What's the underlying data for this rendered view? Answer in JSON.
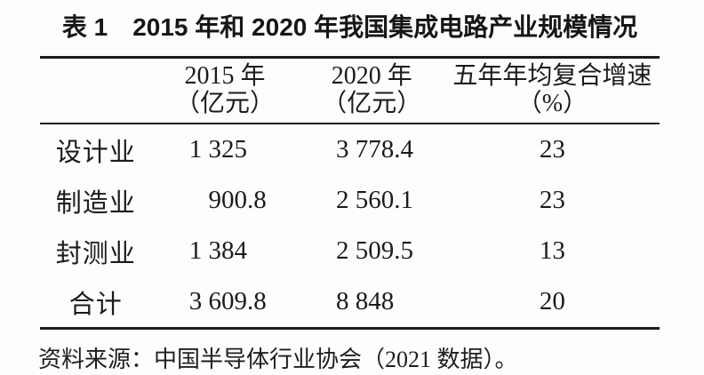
{
  "table": {
    "title": "表 1　2015 年和 2020 年我国集成电路产业规模情况",
    "columns": [
      {
        "line1": "",
        "line2": ""
      },
      {
        "line1": "2015 年",
        "line2": "（亿元）"
      },
      {
        "line1": "2020 年",
        "line2": "（亿元）"
      },
      {
        "line1": "五年年均复合增速",
        "line2": "（%）"
      }
    ],
    "rows": [
      {
        "label": "设计业",
        "y2015": {
          "int": "1 325",
          "dec": ""
        },
        "y2020": {
          "int": "3 778",
          "dec": ".4"
        },
        "growth": "23"
      },
      {
        "label": "制造业",
        "y2015": {
          "int": "900",
          "dec": ".8"
        },
        "y2020": {
          "int": "2 560",
          "dec": ".1"
        },
        "growth": "23"
      },
      {
        "label": "封测业",
        "y2015": {
          "int": "1 384",
          "dec": ""
        },
        "y2020": {
          "int": "2 509",
          "dec": ".5"
        },
        "growth": "13"
      },
      {
        "label": "合计",
        "y2015": {
          "int": "3 609",
          "dec": ".8"
        },
        "y2020": {
          "int": "8 848",
          "dec": ""
        },
        "growth": "20"
      }
    ],
    "source": "资料来源：中国半导体行业协会（2021 数据）。"
  },
  "chart_data": {
    "type": "table",
    "title": "表 1　2015 年和 2020 年我国集成电路产业规模情况",
    "categories": [
      "设计业",
      "制造业",
      "封测业",
      "合计"
    ],
    "series": [
      {
        "name": "2015 年（亿元）",
        "values": [
          1325,
          900.8,
          1384,
          3609.8
        ]
      },
      {
        "name": "2020 年（亿元）",
        "values": [
          3778.4,
          2560.1,
          2509.5,
          8848
        ]
      },
      {
        "name": "五年年均复合增速（%）",
        "values": [
          23,
          23,
          13,
          20
        ]
      }
    ],
    "source": "资料来源：中国半导体行业协会（2021 数据）。"
  }
}
